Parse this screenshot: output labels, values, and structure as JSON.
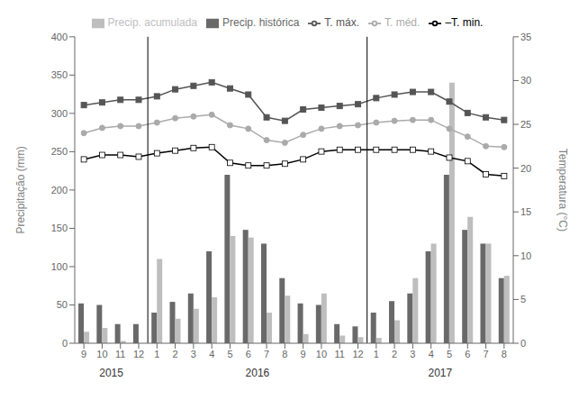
{
  "chart_data": {
    "type": "bar",
    "categories": [
      "9",
      "10",
      "11",
      "12",
      "1",
      "2",
      "3",
      "4",
      "5",
      "6",
      "7",
      "8",
      "9",
      "10",
      "11",
      "12",
      "1",
      "2",
      "3",
      "4",
      "5",
      "6",
      "7",
      "8"
    ],
    "series": [
      {
        "name": "Precip. histórica",
        "type": "bar",
        "color": "#696969",
        "values": [
          52,
          50,
          25,
          25,
          40,
          54,
          65,
          120,
          220,
          148,
          130,
          85,
          52,
          50,
          25,
          22,
          40,
          55,
          65,
          120,
          220,
          148,
          130,
          85
        ]
      },
      {
        "name": "Precip. acumulada",
        "type": "bar",
        "color": "#bebebe",
        "values": [
          15,
          20,
          3,
          0,
          110,
          32,
          45,
          60,
          140,
          138,
          40,
          62,
          12,
          65,
          10,
          8,
          7,
          30,
          85,
          130,
          340,
          165,
          130,
          88
        ]
      },
      {
        "name": "T. máx.",
        "type": "line",
        "axis": "y2",
        "color": "#555555",
        "marker": "square",
        "values": [
          27.2,
          27.5,
          27.8,
          27.8,
          28.2,
          29.0,
          29.4,
          29.8,
          29.1,
          28.4,
          25.8,
          25.4,
          26.7,
          26.9,
          27.1,
          27.3,
          28.0,
          28.4,
          28.7,
          28.7,
          27.6,
          26.3,
          25.8,
          25.5
        ]
      },
      {
        "name": "–T. min.",
        "type": "line",
        "axis": "y2",
        "color": "#000000",
        "marker": "open_square",
        "values": [
          21.0,
          21.5,
          21.5,
          21.3,
          21.7,
          22.0,
          22.3,
          22.4,
          20.6,
          20.3,
          20.3,
          20.5,
          21.0,
          21.9,
          22.1,
          22.1,
          22.1,
          22.1,
          22.1,
          21.9,
          21.2,
          20.8,
          19.3,
          19.1
        ]
      },
      {
        "name": "T. méd.",
        "type": "line",
        "axis": "y2",
        "color": "#aaaaaa",
        "marker": "circle",
        "values": [
          24.0,
          24.6,
          24.8,
          24.8,
          25.2,
          25.7,
          25.9,
          26.1,
          24.9,
          24.5,
          23.2,
          22.9,
          23.8,
          24.5,
          24.8,
          24.9,
          25.2,
          25.4,
          25.5,
          25.5,
          24.5,
          23.6,
          22.5,
          22.4
        ]
      }
    ],
    "ylabel": "Precipitação (mm)",
    "y2label": "Temperatura (°C)",
    "ylim": [
      0,
      400
    ],
    "yticks": [
      0,
      50,
      100,
      150,
      200,
      250,
      300,
      350,
      400
    ],
    "y2lim": [
      0,
      35
    ],
    "y2ticks": [
      0,
      5,
      10,
      15,
      20,
      25,
      30,
      35
    ],
    "grid": false,
    "legend": "top",
    "annotations": [
      {
        "text": "2015",
        "from": 0,
        "to": 3
      },
      {
        "text": "2016",
        "from": 4,
        "to": 15
      },
      {
        "text": "2017",
        "from": 16,
        "to": 23
      }
    ]
  }
}
